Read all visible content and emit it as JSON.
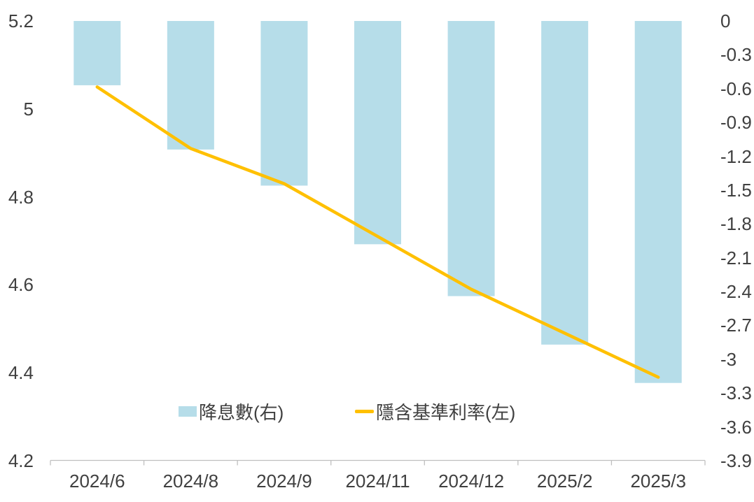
{
  "chart_data": {
    "type": "combo",
    "title": "",
    "subtitle": "",
    "categories": [
      "2024/6",
      "2024/8",
      "2024/9",
      "2024/11",
      "2024/12",
      "2025/2",
      "2025/3"
    ],
    "series": [
      {
        "name": "降息數(右)",
        "type": "bar",
        "axis": "right",
        "color": "#b6dde9",
        "values": [
          -0.57,
          -1.14,
          -1.46,
          -1.98,
          -2.44,
          -2.87,
          -3.21
        ]
      },
      {
        "name": "隱含基準利率(左)",
        "type": "line",
        "axis": "left",
        "color": "#ffc000",
        "values": [
          5.05,
          4.91,
          4.83,
          4.71,
          4.59,
          4.49,
          4.39
        ]
      }
    ],
    "left_axis": {
      "min": 4.2,
      "max": 5.2,
      "step": 0.2,
      "ticks": [
        "5.2",
        "5",
        "4.8",
        "4.6",
        "4.4",
        "4.2"
      ]
    },
    "right_axis": {
      "min": -3.9,
      "max": 0,
      "step": 0.3,
      "ticks": [
        "0",
        "-0.3",
        "-0.6",
        "-0.9",
        "-1.2",
        "-1.5",
        "-1.8",
        "-2.1",
        "-2.4",
        "-2.7",
        "-3",
        "-3.3",
        "-3.6",
        "-3.9"
      ]
    },
    "legend": {
      "position": "bottom-inside",
      "items": [
        "降息數(右)",
        "隱含基準利率(左)"
      ]
    },
    "grid": false,
    "bars_hang_from_zero_at_top": true
  },
  "colors": {
    "bar": "#b6dde9",
    "line": "#ffc000",
    "text": "#404040",
    "axis_line": "#bfbfbf",
    "background": "#ffffff"
  }
}
